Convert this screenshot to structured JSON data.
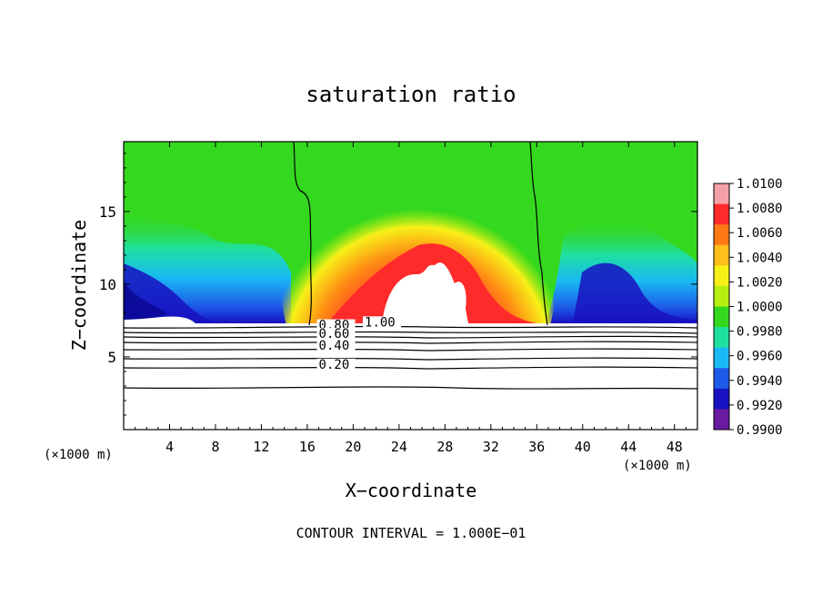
{
  "chart_data": {
    "type": "heatmap",
    "title": "saturation ratio",
    "xlabel": "X−coordinate",
    "ylabel": "Z−coordinate",
    "x_unit": "(×1000 m)",
    "y_unit": "(×1000 m)",
    "xlim": [
      0,
      50
    ],
    "ylim": [
      0,
      19.8
    ],
    "x_ticks": [
      4,
      8,
      12,
      16,
      20,
      24,
      28,
      32,
      36,
      40,
      44,
      48
    ],
    "y_ticks": [
      5,
      10,
      15
    ],
    "colorbar": {
      "min": 0.99,
      "max": 1.01,
      "labels": [
        "1.0100",
        "1.0080",
        "1.0060",
        "1.0040",
        "1.0020",
        "1.0000",
        "0.9980",
        "0.9960",
        "0.9940",
        "0.9920",
        "0.9900"
      ],
      "colors": [
        "#f4a0a8",
        "#ff2a2a",
        "#ff7a14",
        "#ffbe1a",
        "#f7f018",
        "#b7f010",
        "#34d81e",
        "#1ee0a0",
        "#1abaf4",
        "#1e5ae8",
        "#1812c0",
        "#6a1aa0"
      ]
    },
    "contour_labels": [
      {
        "text": "1.00",
        "x": 21,
        "z": 7.1
      },
      {
        "text": "0.80",
        "x": 17,
        "z": 6.9
      },
      {
        "text": "0.60",
        "x": 17,
        "z": 6.3
      },
      {
        "text": "0.40",
        "x": 17,
        "z": 5.5
      },
      {
        "text": "0.20",
        "x": 17,
        "z": 4.2
      }
    ],
    "annotation": "CONTOUR INTERVAL = 1.000E−01"
  }
}
